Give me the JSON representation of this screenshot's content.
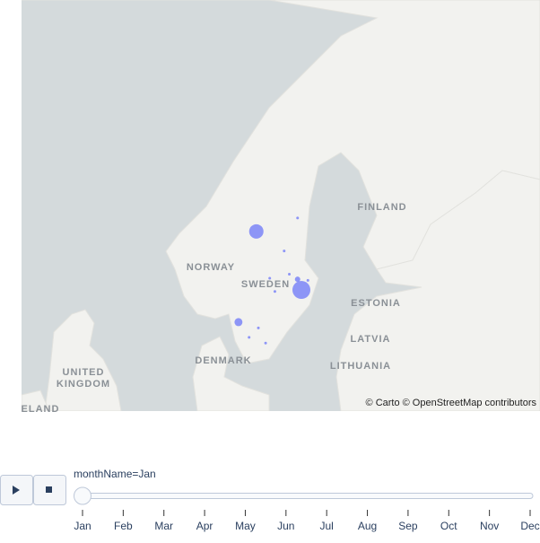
{
  "map": {
    "labels": [
      "FINLAND",
      "NORWAY",
      "SWEDEN",
      "ESTONIA",
      "LATVIA",
      "LITHUANIA",
      "DENMARK",
      "UNITED",
      "KINGDOM",
      "ELAND"
    ],
    "attribution": "© Carto © OpenStreetMap contributors",
    "marker_color": "#636efa",
    "points": [
      {
        "lon": 13.7,
        "lat": 62.1,
        "size": 64
      },
      {
        "lon": 18.07,
        "lat": 59.33,
        "size": 100
      },
      {
        "lon": 17.7,
        "lat": 59.85,
        "size": 9
      },
      {
        "lon": 11.97,
        "lat": 57.7,
        "size": 20
      },
      {
        "lon": 17.7,
        "lat": 62.7,
        "size": 1
      },
      {
        "lon": 16.4,
        "lat": 61.2,
        "size": 1
      },
      {
        "lon": 15.0,
        "lat": 59.9,
        "size": 2
      },
      {
        "lon": 16.9,
        "lat": 60.1,
        "size": 1
      },
      {
        "lon": 18.7,
        "lat": 59.8,
        "size": 1
      },
      {
        "lon": 15.5,
        "lat": 59.25,
        "size": 1
      },
      {
        "lon": 13.9,
        "lat": 57.4,
        "size": 1
      },
      {
        "lon": 13.0,
        "lat": 56.9,
        "size": 1
      },
      {
        "lon": 14.6,
        "lat": 56.6,
        "size": 1
      }
    ]
  },
  "slider": {
    "current_label": "monthName=Jan",
    "active": 0,
    "steps": [
      "Jan",
      "Feb",
      "Mar",
      "Apr",
      "May",
      "Jun",
      "Jul",
      "Aug",
      "Sep",
      "Oct",
      "Nov",
      "Dec"
    ]
  }
}
